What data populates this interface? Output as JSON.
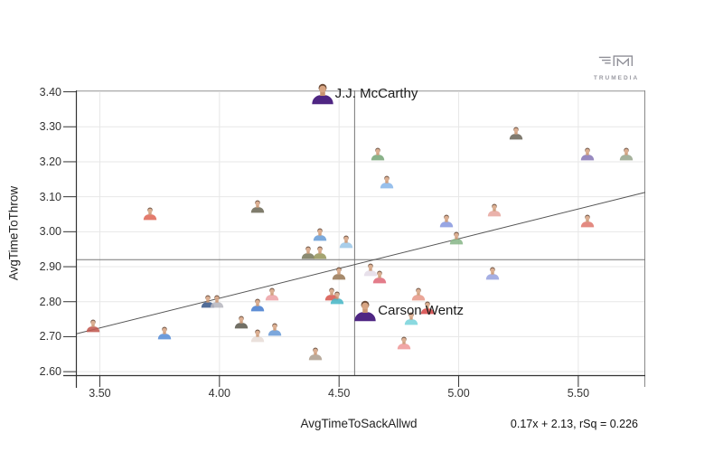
{
  "brand": {
    "name": "TRUMEDIA"
  },
  "chart_data": {
    "type": "scatter",
    "xlabel": "AvgTimeToSackAllwd",
    "ylabel": "AvgTimeToThrow",
    "x_range": [
      3.4,
      5.78
    ],
    "y_range": [
      2.59,
      3.404
    ],
    "grid": true,
    "x_ticks": [
      {
        "value": 3.5,
        "label": "3.50"
      },
      {
        "value": 4.0,
        "label": "4.00"
      },
      {
        "value": 4.5,
        "label": "4.50"
      },
      {
        "value": 5.0,
        "label": "5.00"
      },
      {
        "value": 5.5,
        "label": "5.50"
      }
    ],
    "y_ticks": [
      {
        "value": 2.6,
        "label": "2.60"
      },
      {
        "value": 2.7,
        "label": "2.70"
      },
      {
        "value": 2.8,
        "label": "2.80"
      },
      {
        "value": 2.9,
        "label": "2.90"
      },
      {
        "value": 3.0,
        "label": "3.00"
      },
      {
        "value": 3.1,
        "label": "3.10"
      },
      {
        "value": 3.2,
        "label": "3.20"
      },
      {
        "value": 3.3,
        "label": "3.30"
      },
      {
        "value": 3.4,
        "label": "3.40"
      }
    ],
    "reference_lines": {
      "x_avg": 4.565,
      "y_avg": 2.92
    },
    "trend": {
      "slope": 0.17,
      "intercept": 2.13,
      "label": "0.17x + 2.13, rSq = 0.226"
    },
    "points": [
      {
        "x": 3.47,
        "y": 2.73,
        "jersey": "#c25a50"
      },
      {
        "x": 3.71,
        "y": 3.05,
        "jersey": "#e0695a"
      },
      {
        "x": 3.77,
        "y": 2.71,
        "jersey": "#5a8fd8"
      },
      {
        "x": 3.95,
        "y": 2.8,
        "jersey": "#3a5a8a"
      },
      {
        "x": 3.99,
        "y": 2.8,
        "jersey": "#b8b8c0"
      },
      {
        "x": 4.16,
        "y": 3.07,
        "jersey": "#6e6a58"
      },
      {
        "x": 4.09,
        "y": 2.74,
        "jersey": "#5e5c50"
      },
      {
        "x": 4.16,
        "y": 2.79,
        "jersey": "#4a7fd0"
      },
      {
        "x": 4.22,
        "y": 2.82,
        "jersey": "#eda4a8"
      },
      {
        "x": 4.23,
        "y": 2.72,
        "jersey": "#6a9bd8"
      },
      {
        "x": 4.16,
        "y": 2.7,
        "jersey": "#e8ddd8"
      },
      {
        "x": 4.4,
        "y": 2.65,
        "jersey": "#b0a090"
      },
      {
        "x": 4.42,
        "y": 2.99,
        "jersey": "#6a9fd8"
      },
      {
        "x": 4.53,
        "y": 2.97,
        "jersey": "#9ec8e8"
      },
      {
        "x": 4.37,
        "y": 2.94,
        "jersey": "#7a7a5e"
      },
      {
        "x": 4.42,
        "y": 2.94,
        "jersey": "#98985e"
      },
      {
        "x": 4.5,
        "y": 2.88,
        "jersey": "#9a7a58"
      },
      {
        "x": 4.47,
        "y": 2.82,
        "jersey": "#d85a50"
      },
      {
        "x": 4.49,
        "y": 2.81,
        "jersey": "#4ab8c8"
      },
      {
        "x": 4.63,
        "y": 2.89,
        "jersey": "#e4dce8"
      },
      {
        "x": 4.67,
        "y": 2.87,
        "jersey": "#e06a7a"
      },
      {
        "x": 4.66,
        "y": 3.22,
        "jersey": "#7aa87a"
      },
      {
        "x": 4.7,
        "y": 3.14,
        "jersey": "#8ab8ea"
      },
      {
        "x": 4.83,
        "y": 2.82,
        "jersey": "#e89a8a"
      },
      {
        "x": 4.87,
        "y": 2.78,
        "jersey": "#d84a4a"
      },
      {
        "x": 4.8,
        "y": 2.75,
        "jersey": "#7ad4dc"
      },
      {
        "x": 4.77,
        "y": 2.68,
        "jersey": "#f09a9a"
      },
      {
        "x": 4.99,
        "y": 2.98,
        "jersey": "#8ab88a"
      },
      {
        "x": 4.95,
        "y": 3.03,
        "jersey": "#8a9ae0"
      },
      {
        "x": 5.15,
        "y": 3.06,
        "jersey": "#e8a8a0"
      },
      {
        "x": 5.14,
        "y": 2.88,
        "jersey": "#9aa4e0"
      },
      {
        "x": 5.24,
        "y": 3.28,
        "jersey": "#6e685c"
      },
      {
        "x": 5.54,
        "y": 3.22,
        "jersey": "#8a7ab8"
      },
      {
        "x": 5.7,
        "y": 3.22,
        "jersey": "#9aa890"
      },
      {
        "x": 5.54,
        "y": 3.03,
        "jersey": "#e07a70"
      },
      {
        "x": 4.43,
        "y": 3.39,
        "jersey": "#4f2683",
        "label": "J.J. McCarthy",
        "highlight": true
      },
      {
        "x": 4.61,
        "y": 2.77,
        "jersey": "#4f2683",
        "label": "Carson Wentz",
        "highlight": true
      }
    ]
  }
}
